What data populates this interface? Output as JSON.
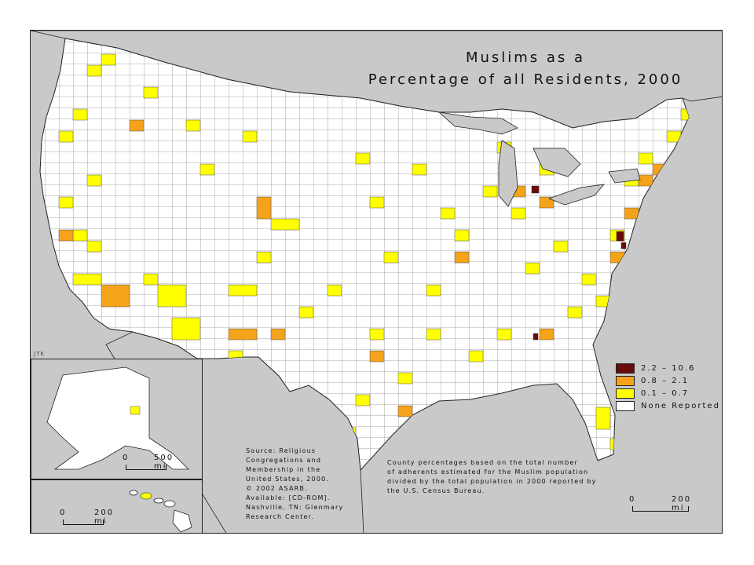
{
  "title": {
    "line1": "Muslims as a",
    "line2": "Percentage of all Residents, 2000"
  },
  "credit": "JTK",
  "legend": [
    {
      "label": "2.2 – 10.6",
      "color": "#6b0a0a"
    },
    {
      "label": "0.8 – 2.1",
      "color": "#f5a31a"
    },
    {
      "label": "0.1 – 0.7",
      "color": "#ffff00"
    },
    {
      "label": "None Reported",
      "color": "#ffffff"
    }
  ],
  "source_note": [
    "Source: Religious",
    "Congregations and",
    "Membership in the",
    "United States, 2000.",
    "© 2002 ASARB.",
    "Available: [CD-ROM].",
    "Nashville, TN: Glenmary",
    "Research Center."
  ],
  "method_note": [
    "County percentages based on the total number",
    "of adherents estimated for the Muslim population",
    "divided by the total population in 2000 reported by",
    "the U.S. Census Bureau."
  ],
  "scales": {
    "alaska": {
      "zero": "0",
      "end": "500 mi"
    },
    "hawaii": {
      "zero": "0",
      "end": "200 mi"
    },
    "main": {
      "zero": "0",
      "end": "200 mi"
    }
  },
  "colors": {
    "water": "#c9c9c9",
    "land": "#ffffff",
    "border": "#222222"
  }
}
